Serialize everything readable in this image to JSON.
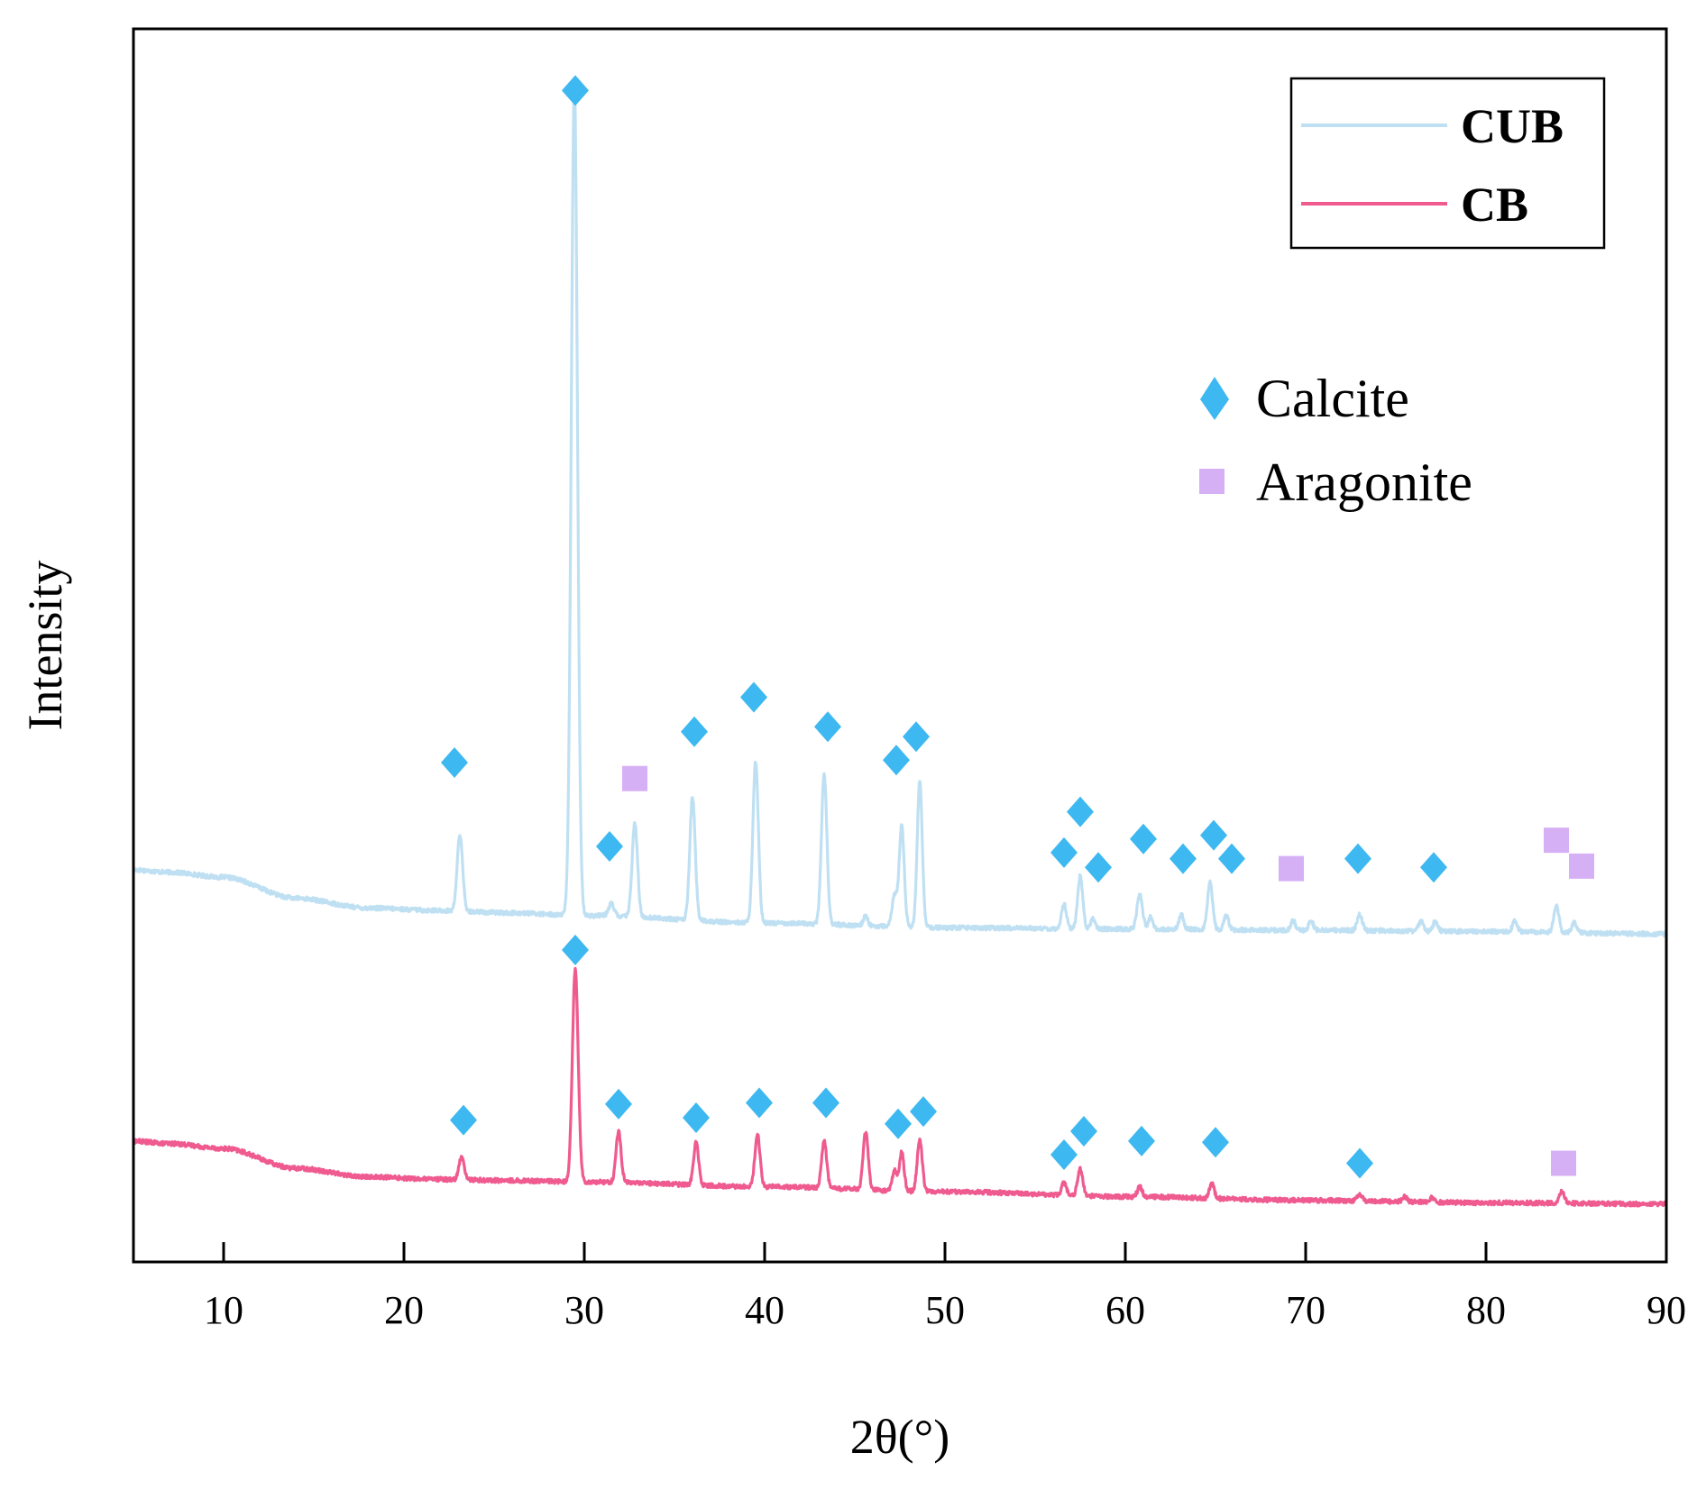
{
  "chart_data": {
    "type": "line",
    "title": "",
    "xlabel": "2θ(°)",
    "ylabel": "Intensity",
    "xlim": [
      5,
      90
    ],
    "ylim": [
      0,
      100
    ],
    "xticks": [
      10,
      20,
      30,
      40,
      50,
      60,
      70,
      80,
      90
    ],
    "legend": {
      "position": "top-right",
      "entries": [
        "CUB",
        "CB"
      ]
    },
    "phase_legend": [
      {
        "name": "Calcite",
        "marker": "diamond",
        "color": "#3db8f0"
      },
      {
        "name": "Aragonite",
        "marker": "square",
        "color": "#d6b0f5"
      }
    ],
    "series": [
      {
        "name": "CUB",
        "color": "#bfe0f2",
        "baseline": [
          [
            5,
            31.8
          ],
          [
            7,
            31.6
          ],
          [
            10,
            31.2
          ],
          [
            14,
            29.5
          ],
          [
            18,
            28.7
          ],
          [
            22,
            28.5
          ],
          [
            26,
            28.3
          ],
          [
            30,
            28.1
          ],
          [
            40,
            27.5
          ],
          [
            50,
            27.1
          ],
          [
            60,
            27.0
          ],
          [
            70,
            26.9
          ],
          [
            80,
            26.8
          ],
          [
            90,
            26.6
          ]
        ],
        "peaks": [
          {
            "x": 23.1,
            "h": 6.2,
            "w": 0.15
          },
          {
            "x": 29.45,
            "h": 67.5,
            "w": 0.17
          },
          {
            "x": 31.5,
            "h": 1.0,
            "w": 0.15
          },
          {
            "x": 32.8,
            "h": 7.6,
            "w": 0.15
          },
          {
            "x": 36.0,
            "h": 10.0,
            "w": 0.15
          },
          {
            "x": 39.5,
            "h": 13.1,
            "w": 0.15
          },
          {
            "x": 43.3,
            "h": 12.2,
            "w": 0.15
          },
          {
            "x": 45.6,
            "h": 0.8,
            "w": 0.12
          },
          {
            "x": 47.2,
            "h": 2.5,
            "w": 0.14
          },
          {
            "x": 47.6,
            "h": 8.2,
            "w": 0.14
          },
          {
            "x": 48.6,
            "h": 11.8,
            "w": 0.14
          },
          {
            "x": 56.6,
            "h": 2.0,
            "w": 0.14
          },
          {
            "x": 57.5,
            "h": 4.3,
            "w": 0.14
          },
          {
            "x": 58.2,
            "h": 0.8,
            "w": 0.12
          },
          {
            "x": 60.8,
            "h": 2.8,
            "w": 0.15
          },
          {
            "x": 61.4,
            "h": 1.0,
            "w": 0.12
          },
          {
            "x": 63.1,
            "h": 1.2,
            "w": 0.13
          },
          {
            "x": 64.7,
            "h": 3.8,
            "w": 0.14
          },
          {
            "x": 65.6,
            "h": 1.2,
            "w": 0.13
          },
          {
            "x": 69.3,
            "h": 0.8,
            "w": 0.12
          },
          {
            "x": 70.3,
            "h": 0.8,
            "w": 0.12
          },
          {
            "x": 73.0,
            "h": 1.3,
            "w": 0.14
          },
          {
            "x": 76.4,
            "h": 0.8,
            "w": 0.13
          },
          {
            "x": 77.2,
            "h": 0.8,
            "w": 0.13
          },
          {
            "x": 81.6,
            "h": 0.9,
            "w": 0.13
          },
          {
            "x": 83.9,
            "h": 2.2,
            "w": 0.14
          },
          {
            "x": 84.9,
            "h": 0.8,
            "w": 0.13
          }
        ]
      },
      {
        "name": "CB",
        "color": "#ef5a8f",
        "baseline": [
          [
            5,
            9.8
          ],
          [
            7,
            9.6
          ],
          [
            10,
            9.2
          ],
          [
            14,
            7.6
          ],
          [
            18,
            6.9
          ],
          [
            22,
            6.7
          ],
          [
            26,
            6.6
          ],
          [
            30,
            6.5
          ],
          [
            40,
            6.1
          ],
          [
            50,
            5.7
          ],
          [
            60,
            5.3
          ],
          [
            70,
            5.0
          ],
          [
            80,
            4.8
          ],
          [
            90,
            4.7
          ]
        ],
        "peaks": [
          {
            "x": 23.2,
            "h": 1.9,
            "w": 0.14
          },
          {
            "x": 29.5,
            "h": 17.3,
            "w": 0.16
          },
          {
            "x": 31.9,
            "h": 4.1,
            "w": 0.14
          },
          {
            "x": 36.2,
            "h": 3.5,
            "w": 0.14
          },
          {
            "x": 39.6,
            "h": 4.3,
            "w": 0.14
          },
          {
            "x": 43.3,
            "h": 3.8,
            "w": 0.14
          },
          {
            "x": 45.6,
            "h": 4.7,
            "w": 0.14
          },
          {
            "x": 47.2,
            "h": 1.6,
            "w": 0.13
          },
          {
            "x": 47.6,
            "h": 3.1,
            "w": 0.13
          },
          {
            "x": 48.6,
            "h": 4.2,
            "w": 0.14
          },
          {
            "x": 56.6,
            "h": 1.0,
            "w": 0.13
          },
          {
            "x": 57.5,
            "h": 2.2,
            "w": 0.14
          },
          {
            "x": 60.8,
            "h": 0.8,
            "w": 0.13
          },
          {
            "x": 64.8,
            "h": 1.2,
            "w": 0.13
          },
          {
            "x": 73.0,
            "h": 0.5,
            "w": 0.13
          },
          {
            "x": 75.5,
            "h": 0.4,
            "w": 0.12
          },
          {
            "x": 77.0,
            "h": 0.4,
            "w": 0.12
          },
          {
            "x": 84.2,
            "h": 1.0,
            "w": 0.14
          }
        ]
      }
    ],
    "annotations": [
      {
        "series": "CUB",
        "phase": "Calcite",
        "points": [
          [
            22.8,
            40.5
          ],
          [
            29.5,
            95.0
          ],
          [
            31.4,
            33.7
          ],
          [
            36.1,
            43.0
          ],
          [
            39.4,
            45.8
          ],
          [
            43.5,
            43.4
          ],
          [
            47.3,
            40.7
          ],
          [
            48.4,
            42.6
          ],
          [
            56.6,
            33.2
          ],
          [
            57.5,
            36.5
          ],
          [
            58.5,
            32.0
          ],
          [
            61.0,
            34.3
          ],
          [
            63.2,
            32.7
          ],
          [
            64.9,
            34.6
          ],
          [
            65.9,
            32.7
          ],
          [
            72.9,
            32.7
          ],
          [
            77.1,
            32.0
          ]
        ]
      },
      {
        "series": "CUB",
        "phase": "Aragonite",
        "points": [
          [
            32.8,
            39.2
          ],
          [
            69.2,
            31.9
          ],
          [
            83.9,
            34.2
          ],
          [
            85.3,
            32.1
          ]
        ]
      },
      {
        "series": "CB",
        "phase": "Calcite",
        "points": [
          [
            23.3,
            11.5
          ],
          [
            29.5,
            25.3
          ],
          [
            31.9,
            12.8
          ],
          [
            36.2,
            11.7
          ],
          [
            39.7,
            12.9
          ],
          [
            43.4,
            12.9
          ],
          [
            47.4,
            11.2
          ],
          [
            48.8,
            12.2
          ],
          [
            56.6,
            8.7
          ],
          [
            57.7,
            10.6
          ],
          [
            60.9,
            9.8
          ],
          [
            65.0,
            9.7
          ],
          [
            73.0,
            8.0
          ]
        ]
      },
      {
        "series": "CB",
        "phase": "Aragonite",
        "points": [
          [
            84.3,
            8.0
          ]
        ]
      }
    ]
  }
}
